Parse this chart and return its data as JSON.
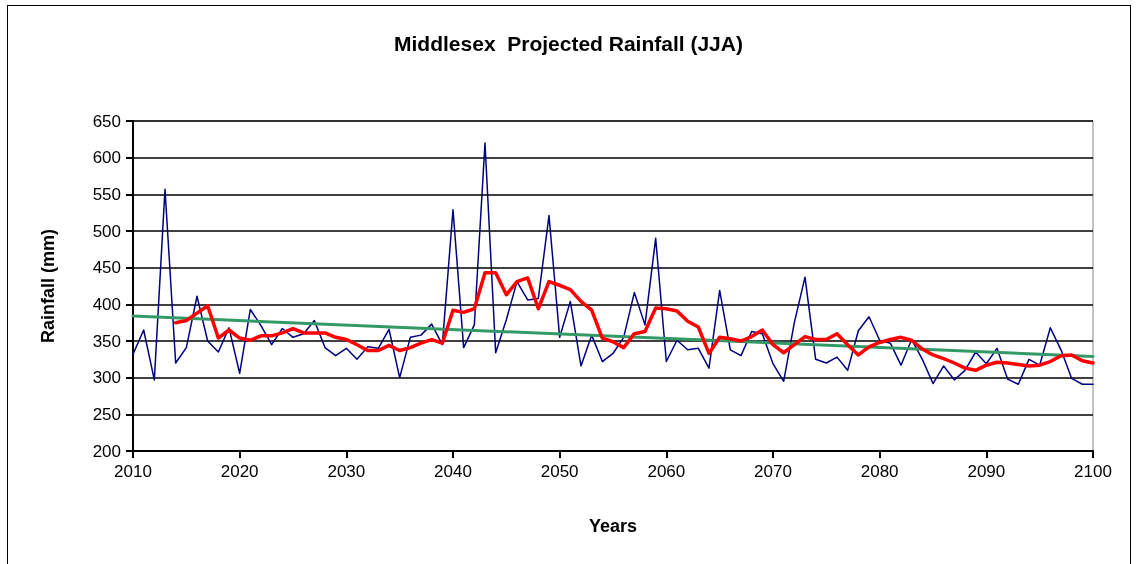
{
  "chart_data": {
    "type": "line",
    "title": "Middlesex  Projected Rainfall (JJA)",
    "xlabel": "Years",
    "ylabel": "Rainfall (mm)",
    "x": [
      2010,
      2011,
      2012,
      2013,
      2014,
      2015,
      2016,
      2017,
      2018,
      2019,
      2020,
      2021,
      2022,
      2023,
      2024,
      2025,
      2026,
      2027,
      2028,
      2029,
      2030,
      2031,
      2032,
      2033,
      2034,
      2035,
      2036,
      2037,
      2038,
      2039,
      2040,
      2041,
      2042,
      2043,
      2044,
      2045,
      2046,
      2047,
      2048,
      2049,
      2050,
      2051,
      2052,
      2053,
      2054,
      2055,
      2056,
      2057,
      2058,
      2059,
      2060,
      2061,
      2062,
      2063,
      2064,
      2065,
      2066,
      2067,
      2068,
      2069,
      2070,
      2071,
      2072,
      2073,
      2074,
      2075,
      2076,
      2077,
      2078,
      2079,
      2080,
      2081,
      2082,
      2083,
      2084,
      2085,
      2086,
      2087,
      2088,
      2089,
      2090,
      2091,
      2092,
      2093,
      2094,
      2095,
      2096,
      2097,
      2098,
      2099,
      2100
    ],
    "series": [
      {
        "color": "#000080",
        "values": [
          332,
          365,
          297,
          557,
          320,
          341,
          411,
          350,
          335,
          368,
          306,
          393,
          371,
          345,
          367,
          355,
          360,
          378,
          341,
          330,
          340,
          325,
          342,
          340,
          366,
          300,
          355,
          358,
          373,
          345,
          529,
          341,
          372,
          620,
          334,
          379,
          431,
          406,
          408,
          521,
          355,
          404,
          316,
          358,
          322,
          333,
          355,
          416,
          372,
          490,
          322,
          351,
          338,
          340,
          313,
          419,
          338,
          330,
          363,
          360,
          319,
          295,
          375,
          437,
          325,
          320,
          328,
          310,
          364,
          383,
          351,
          347,
          317,
          352,
          325,
          292,
          316,
          297,
          310,
          335,
          319,
          340,
          298,
          291,
          325,
          317,
          368,
          338,
          299,
          291,
          291
        ]
      },
      {
        "color": "#339966",
        "x": [
          2010,
          2100
        ],
        "values": [
          384,
          329
        ]
      },
      {
        "color": "#ff0000",
        "x": [
          2014,
          2015,
          2016,
          2017,
          2018,
          2019,
          2020,
          2021,
          2022,
          2023,
          2024,
          2025,
          2026,
          2027,
          2028,
          2029,
          2030,
          2031,
          2032,
          2033,
          2034,
          2035,
          2036,
          2037,
          2038,
          2039,
          2040,
          2041,
          2042,
          2043,
          2044,
          2045,
          2046,
          2047,
          2048,
          2049,
          2050,
          2051,
          2052,
          2053,
          2054,
          2055,
          2056,
          2057,
          2058,
          2059,
          2060,
          2061,
          2062,
          2063,
          2064,
          2065,
          2066,
          2067,
          2068,
          2069,
          2070,
          2071,
          2072,
          2073,
          2074,
          2075,
          2076,
          2077,
          2078,
          2079,
          2080,
          2081,
          2082,
          2083,
          2084,
          2085,
          2086,
          2087,
          2088,
          2089,
          2090,
          2091,
          2092,
          2093,
          2094,
          2095,
          2096,
          2097,
          2098,
          2099,
          2100
        ],
        "values": [
          375,
          378,
          388,
          398,
          354,
          365,
          354,
          351,
          357,
          357,
          361,
          367,
          361,
          361,
          361,
          355,
          352,
          345,
          337,
          337,
          344,
          337,
          341,
          347,
          352,
          347,
          392,
          389,
          394,
          443,
          443,
          413,
          431,
          436,
          394,
          431,
          426,
          420,
          404,
          392,
          354,
          349,
          341,
          360,
          363,
          395,
          394,
          391,
          377,
          369,
          333,
          355,
          353,
          350,
          356,
          365,
          345,
          334,
          345,
          356,
          352,
          352,
          360,
          345,
          331,
          342,
          348,
          352,
          355,
          351,
          339,
          331,
          326,
          320,
          313,
          310,
          317,
          321,
          320,
          318,
          316,
          317,
          322,
          330,
          331,
          323,
          320
        ]
      }
    ],
    "xlim": [
      2010,
      2100
    ],
    "xticks": [
      2010,
      2020,
      2030,
      2040,
      2050,
      2060,
      2070,
      2080,
      2090,
      2100
    ],
    "ylim": [
      200,
      650
    ],
    "yticks": [
      200,
      250,
      300,
      350,
      400,
      450,
      500,
      550,
      600,
      650
    ],
    "grid": "y",
    "marker": "none",
    "line_style": "solid"
  }
}
